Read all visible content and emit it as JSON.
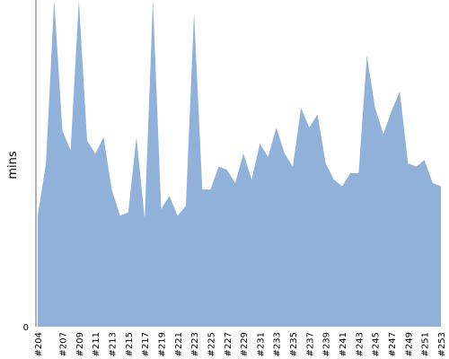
{
  "chart_data": {
    "type": "area",
    "title": "",
    "xlabel": "",
    "ylabel": "mins",
    "y_tick_labels": [
      "0"
    ],
    "ylim": [
      0,
      100
    ],
    "grid": false,
    "legend": "none",
    "color": "#8FB1DA",
    "x": [
      "#204",
      "#205",
      "#206",
      "#207",
      "#208",
      "#209",
      "#210",
      "#211",
      "#212",
      "#213",
      "#214",
      "#215",
      "#216",
      "#217",
      "#218",
      "#219",
      "#220",
      "#221",
      "#222",
      "#223",
      "#224",
      "#225",
      "#226",
      "#227",
      "#228",
      "#229",
      "#230",
      "#231",
      "#232",
      "#233",
      "#234",
      "#235",
      "#236",
      "#237",
      "#238",
      "#239",
      "#240",
      "#241",
      "#242",
      "#243",
      "#244",
      "#245",
      "#246",
      "#247",
      "#248",
      "#249",
      "#250",
      "#251",
      "#252",
      "#253"
    ],
    "x_tick_labels": [
      "#204",
      "#207",
      "#209",
      "#211",
      "#213",
      "#215",
      "#217",
      "#219",
      "#221",
      "#223",
      "#225",
      "#227",
      "#229",
      "#231",
      "#233",
      "#235",
      "#237",
      "#239",
      "#241",
      "#243",
      "#245",
      "#247",
      "#249",
      "#251",
      "#253"
    ],
    "values": [
      34,
      50,
      100,
      60,
      54,
      100,
      57,
      53,
      58,
      42,
      34,
      35,
      58,
      33,
      100,
      36,
      40,
      34,
      37,
      96,
      42,
      42,
      49,
      48,
      44,
      53,
      45,
      56,
      52,
      61,
      53,
      49,
      67,
      61,
      65,
      50,
      45,
      43,
      47,
      47,
      83,
      67,
      59,
      66,
      72,
      50,
      49,
      51,
      44,
      43
    ]
  }
}
